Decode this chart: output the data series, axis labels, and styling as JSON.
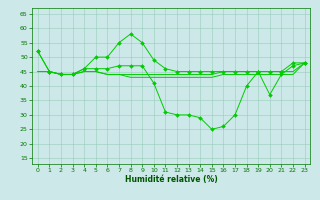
{
  "xlabel": "Humidité relative (%)",
  "xlim": [
    -0.5,
    23.5
  ],
  "ylim": [
    13,
    67
  ],
  "yticks": [
    15,
    20,
    25,
    30,
    35,
    40,
    45,
    50,
    55,
    60,
    65
  ],
  "xticks": [
    0,
    1,
    2,
    3,
    4,
    5,
    6,
    7,
    8,
    9,
    10,
    11,
    12,
    13,
    14,
    15,
    16,
    17,
    18,
    19,
    20,
    21,
    22,
    23
  ],
  "background_color": "#cce8e8",
  "grid_color": "#99ccbb",
  "line_color": "#00cc00",
  "lines": [
    [
      52,
      45,
      44,
      44,
      46,
      50,
      50,
      55,
      58,
      55,
      49,
      46,
      45,
      45,
      45,
      45,
      45,
      45,
      45,
      45,
      45,
      45,
      48,
      48
    ],
    [
      52,
      45,
      44,
      44,
      46,
      46,
      46,
      47,
      47,
      47,
      41,
      31,
      30,
      30,
      29,
      25,
      26,
      30,
      40,
      45,
      37,
      44,
      47,
      48
    ],
    [
      45,
      45,
      44,
      44,
      45,
      45,
      44,
      44,
      44,
      44,
      44,
      44,
      44,
      44,
      44,
      44,
      45,
      45,
      45,
      45,
      45,
      45,
      45,
      48
    ],
    [
      45,
      45,
      44,
      44,
      45,
      45,
      44,
      44,
      43,
      43,
      43,
      43,
      43,
      43,
      43,
      43,
      44,
      44,
      44,
      44,
      44,
      44,
      44,
      48
    ]
  ],
  "marker_lines": [
    0,
    1
  ],
  "marker": "D",
  "marker_size": 2.0,
  "linewidth": 0.7
}
